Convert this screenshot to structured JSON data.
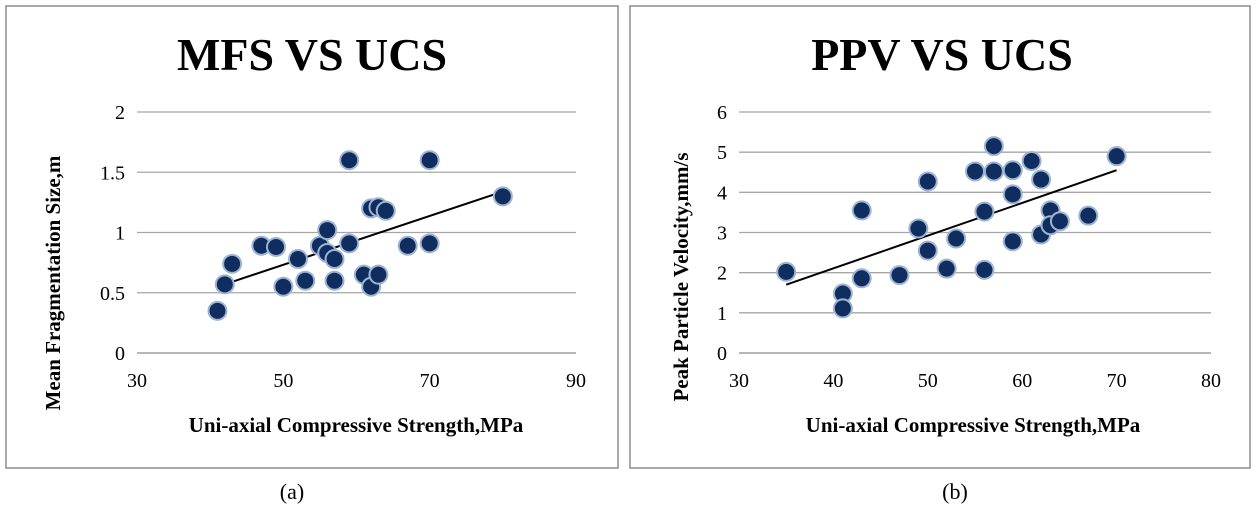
{
  "colors": {
    "marker_fill": "#0f2d5e",
    "marker_edge": "#9fb4d2",
    "grid": "#a6a6a6",
    "frame": "#8c8c8c",
    "trendline": "#000000"
  },
  "chart_data": [
    {
      "type": "scatter",
      "title": "MFS VS UCS",
      "caption": "(a)",
      "xlabel": "Uni-axial Compressive Strength,MPa",
      "ylabel": "Mean Fragmentation Size,m",
      "xlim": [
        30,
        90
      ],
      "ylim": [
        0,
        2
      ],
      "xticks": [
        "30",
        "50",
        "70",
        "90"
      ],
      "yticks": [
        "0",
        "0.5",
        "1",
        "1.5",
        "2"
      ],
      "grid": "horizontal",
      "x": [
        41,
        42,
        43,
        47,
        49,
        50,
        52,
        53,
        55,
        56,
        56,
        57,
        57,
        59,
        59,
        61,
        62,
        62,
        63,
        63,
        64,
        67,
        70,
        70,
        80
      ],
      "y": [
        0.35,
        0.57,
        0.74,
        0.89,
        0.88,
        0.55,
        0.78,
        0.6,
        0.89,
        1.02,
        0.83,
        0.78,
        0.6,
        1.6,
        0.91,
        0.65,
        0.55,
        1.2,
        1.21,
        0.65,
        1.18,
        0.89,
        1.6,
        0.91,
        1.3
      ],
      "trendline": {
        "x": [
          42,
          80
        ],
        "y": [
          0.57,
          1.34
        ]
      }
    },
    {
      "type": "scatter",
      "title": "PPV VS UCS",
      "caption": "(b)",
      "xlabel": "Uni-axial Compressive Strength,MPa",
      "ylabel": "Peak Particle Velocity,mm/s",
      "xlim": [
        30,
        80
      ],
      "ylim": [
        0,
        6
      ],
      "xticks": [
        "30",
        "40",
        "50",
        "60",
        "70",
        "80"
      ],
      "yticks": [
        "0",
        "1",
        "2",
        "3",
        "4",
        "5",
        "6"
      ],
      "grid": "horizontal",
      "x": [
        35,
        41,
        41,
        43,
        43,
        47,
        49,
        50,
        50,
        52,
        53,
        55,
        56,
        56,
        57,
        57,
        59,
        59,
        59,
        61,
        62,
        62,
        63,
        63,
        64,
        67,
        70
      ],
      "y": [
        2.02,
        1.48,
        1.11,
        1.86,
        3.55,
        1.94,
        3.1,
        4.27,
        2.55,
        2.1,
        2.85,
        4.52,
        3.52,
        2.07,
        5.15,
        4.52,
        4.55,
        3.95,
        2.78,
        4.78,
        4.32,
        2.95,
        3.55,
        3.18,
        3.28,
        3.42,
        4.9
      ],
      "trendline": {
        "x": [
          35,
          70
        ],
        "y": [
          1.7,
          4.55
        ]
      }
    }
  ]
}
